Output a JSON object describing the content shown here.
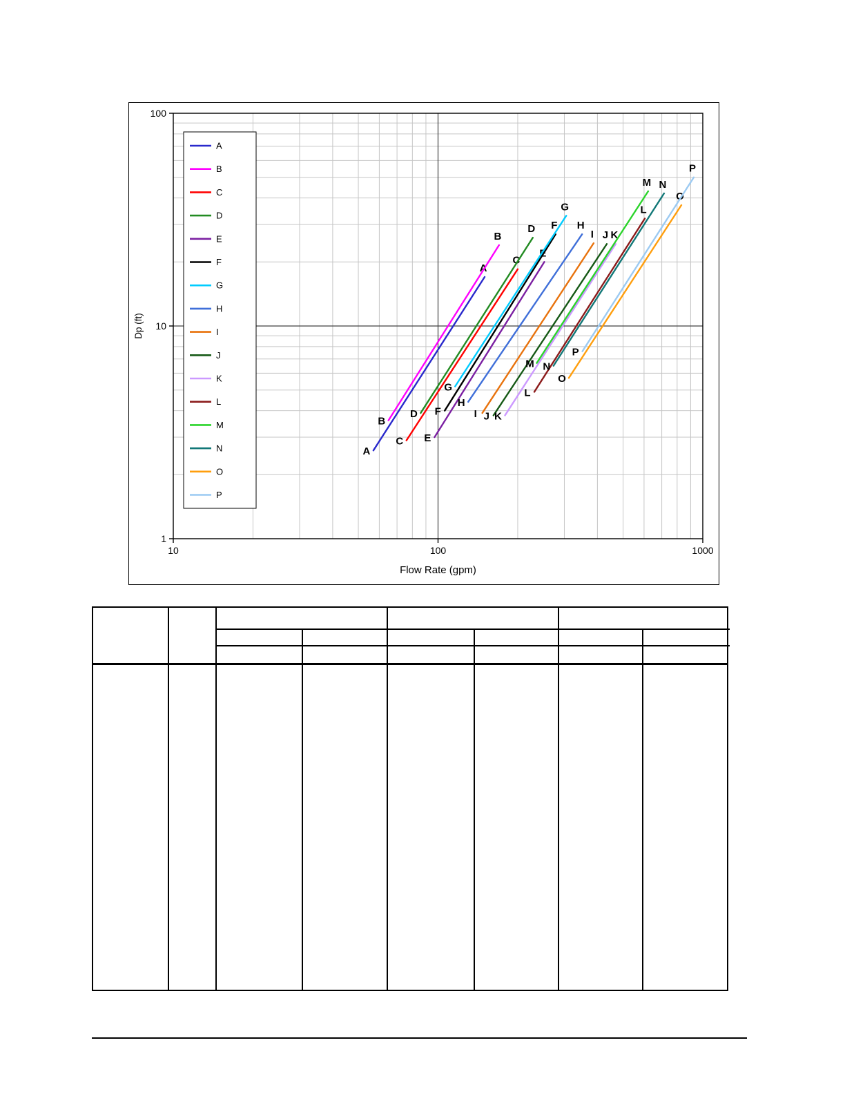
{
  "chart_data": {
    "type": "line",
    "title": "",
    "xlabel": "Flow Rate (gpm)",
    "ylabel": "Dp (ft)",
    "x_scale": "log",
    "y_scale": "log",
    "xlim": [
      10,
      1000
    ],
    "ylim": [
      1,
      100
    ],
    "x_ticks": [
      10,
      100,
      1000
    ],
    "y_ticks": [
      1,
      10,
      100
    ],
    "grid": "log-minor-on",
    "legend_position": "inside-left",
    "series": [
      {
        "name": "A",
        "color": "#2929cc",
        "points": [
          [
            57,
            2.6
          ],
          [
            150,
            17
          ]
        ]
      },
      {
        "name": "B",
        "color": "#ff00ff",
        "points": [
          [
            65,
            3.6
          ],
          [
            170,
            24
          ]
        ]
      },
      {
        "name": "C",
        "color": "#ff0000",
        "points": [
          [
            76,
            2.9
          ],
          [
            200,
            18.5
          ]
        ]
      },
      {
        "name": "D",
        "color": "#228b22",
        "points": [
          [
            86,
            3.9
          ],
          [
            228,
            26
          ]
        ]
      },
      {
        "name": "E",
        "color": "#7b1fa2",
        "points": [
          [
            97,
            3.0
          ],
          [
            252,
            20
          ]
        ]
      },
      {
        "name": "F",
        "color": "#000000",
        "points": [
          [
            106,
            4.0
          ],
          [
            278,
            27
          ]
        ]
      },
      {
        "name": "G",
        "color": "#00ccff",
        "points": [
          [
            116,
            5.2
          ],
          [
            305,
            33
          ]
        ]
      },
      {
        "name": "H",
        "color": "#3f6fd9",
        "points": [
          [
            130,
            4.4
          ],
          [
            350,
            27
          ]
        ]
      },
      {
        "name": "I",
        "color": "#e8720c",
        "points": [
          [
            147,
            3.9
          ],
          [
            387,
            24.5
          ]
        ]
      },
      {
        "name": "J",
        "color": "#155915",
        "points": [
          [
            162,
            3.8
          ],
          [
            434,
            24.3
          ]
        ]
      },
      {
        "name": "K",
        "color": "#cc99ff",
        "points": [
          [
            179,
            3.8
          ],
          [
            469,
            24.3
          ]
        ]
      },
      {
        "name": "L",
        "color": "#8b1a1a",
        "points": [
          [
            231,
            4.9
          ],
          [
            604,
            32
          ]
        ]
      },
      {
        "name": "M",
        "color": "#2bd42b",
        "points": [
          [
            236,
            6.7
          ],
          [
            622,
            43
          ]
        ]
      },
      {
        "name": "N",
        "color": "#117777",
        "points": [
          [
            273,
            6.5
          ],
          [
            714,
            42
          ]
        ]
      },
      {
        "name": "O",
        "color": "#ff9e0d",
        "points": [
          [
            312,
            5.7
          ],
          [
            830,
            37
          ]
        ]
      },
      {
        "name": "P",
        "color": "#9ccaf2",
        "points": [
          [
            351,
            7.6
          ],
          [
            925,
            50
          ]
        ]
      }
    ],
    "colors": {
      "minor_grid": "#c6c6c6",
      "major_grid": "#404040",
      "axis": "#000000"
    }
  }
}
